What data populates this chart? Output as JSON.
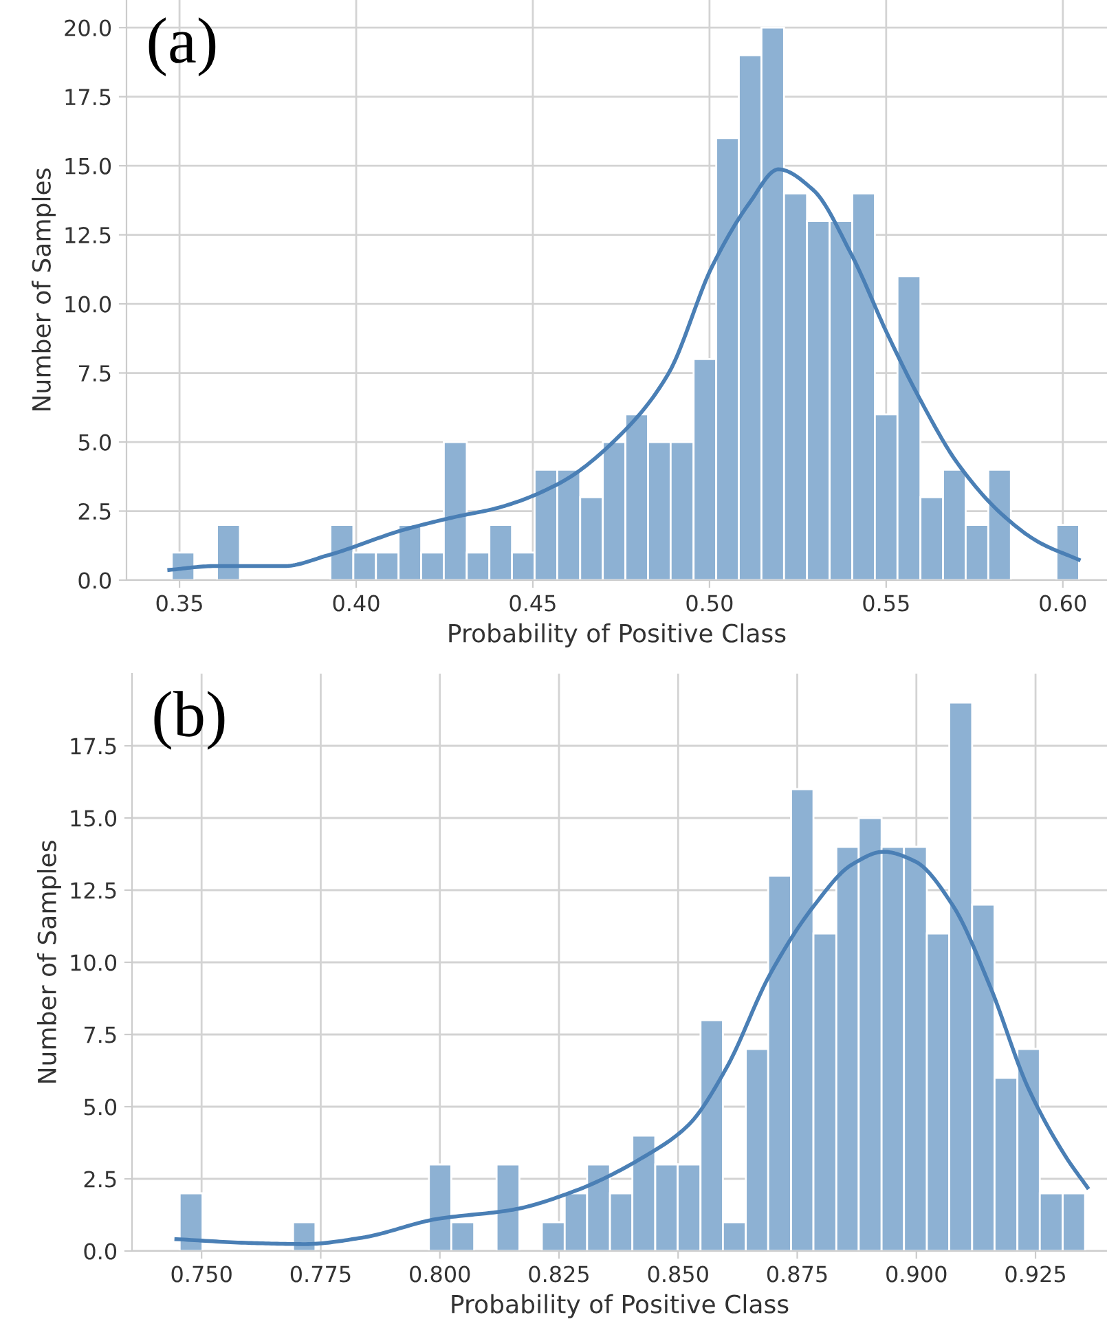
{
  "chart_data": [
    {
      "type": "histogram",
      "xlabel": "Probability of Positive Class",
      "ylabel": "Number of Samples",
      "annotations": [
        "(a)"
      ],
      "color": "#8db1d3",
      "grid": true,
      "bins": [
        0.3478,
        0.3542,
        0.3606,
        0.3671,
        0.3927,
        0.3992,
        0.4056,
        0.412,
        0.4184,
        0.4248,
        0.4313,
        0.4377,
        0.4441,
        0.4505,
        0.4569,
        0.4634,
        0.4698,
        0.4762,
        0.4826,
        0.489,
        0.4955,
        0.5019,
        0.5083,
        0.5147,
        0.5211,
        0.5276,
        0.534,
        0.5404,
        0.5468,
        0.5532,
        0.5597,
        0.5661,
        0.5725,
        0.5789,
        0.5853,
        0.5982,
        0.6046
      ],
      "values": [
        1,
        0,
        2,
        0,
        2,
        1,
        1,
        2,
        1,
        5,
        1,
        2,
        1,
        4,
        4,
        3,
        5,
        6,
        5,
        5,
        8,
        16,
        19,
        20,
        14,
        13,
        13,
        14,
        6,
        11,
        3,
        4,
        2,
        4,
        0,
        2
      ],
      "series": [
        {
          "type": "line",
          "color": "#4a7fb5",
          "x": [
            0.3471,
            0.36,
            0.3796,
            0.392,
            0.4134,
            0.4277,
            0.4402,
            0.458,
            0.4758,
            0.4883,
            0.5008,
            0.5114,
            0.5195,
            0.5293,
            0.54,
            0.5506,
            0.5596,
            0.5702,
            0.5827,
            0.5934,
            0.6045
          ],
          "values": [
            0.37,
            0.51,
            0.51,
            0.9,
            1.82,
            2.28,
            2.62,
            3.54,
            5.39,
            7.46,
            11.37,
            13.67,
            14.87,
            14.13,
            11.83,
            8.84,
            6.54,
            4.23,
            2.39,
            1.36,
            0.74
          ]
        }
      ],
      "xlim": [
        0.335,
        0.6125
      ],
      "xticks": [
        {
          "value": 0.35,
          "label": "0.35"
        },
        {
          "value": 0.4,
          "label": "0.40"
        },
        {
          "value": 0.45,
          "label": "0.45"
        },
        {
          "value": 0.5,
          "label": "0.50"
        },
        {
          "value": 0.55,
          "label": "0.55"
        },
        {
          "value": 0.6,
          "label": "0.60"
        }
      ],
      "ylim": [
        0,
        21
      ],
      "yticks": [
        {
          "value": 0,
          "label": "0.0"
        },
        2.5,
        {
          "value": 5,
          "label": "5.0"
        },
        7.5,
        {
          "value": 10,
          "label": "10.0"
        },
        12.5,
        {
          "value": 15,
          "label": "15.0"
        },
        17.5,
        {
          "value": 20,
          "label": "20.0"
        }
      ]
    },
    {
      "type": "histogram",
      "xlabel": "Probability of Positive Class",
      "ylabel": "Number of Samples",
      "annotations": [
        "(b)"
      ],
      "color": "#8db1d3",
      "grid": true,
      "bins": [
        0.7454,
        0.7502,
        0.7692,
        0.7739,
        0.7977,
        0.8024,
        0.8072,
        0.8119,
        0.8167,
        0.8214,
        0.8262,
        0.8309,
        0.8357,
        0.8404,
        0.8452,
        0.8499,
        0.8547,
        0.8594,
        0.8642,
        0.8689,
        0.8737,
        0.8784,
        0.8832,
        0.8879,
        0.8927,
        0.8974,
        0.9022,
        0.9069,
        0.9117,
        0.9164,
        0.9212,
        0.9259,
        0.9307,
        0.9354
      ],
      "values": [
        2,
        0,
        1,
        0,
        3,
        1,
        0,
        3,
        0,
        1,
        2,
        3,
        2,
        4,
        3,
        3,
        8,
        1,
        7,
        13,
        16,
        11,
        14,
        15,
        14,
        14,
        11,
        19,
        12,
        6,
        7,
        2,
        2
      ],
      "series": [
        {
          "type": "line",
          "color": "#4a7fb5",
          "x": [
            0.7447,
            0.7599,
            0.7718,
            0.7836,
            0.7994,
            0.8153,
            0.8285,
            0.843,
            0.8522,
            0.8601,
            0.8693,
            0.8786,
            0.8865,
            0.8931,
            0.8997,
            0.9076,
            0.9155,
            0.9234,
            0.9313,
            0.9359
          ],
          "values": [
            0.41,
            0.28,
            0.24,
            0.46,
            1.11,
            1.43,
            2.09,
            3.28,
            4.37,
            6.33,
            9.59,
            11.98,
            13.39,
            13.83,
            13.5,
            11.98,
            9.15,
            5.67,
            3.28,
            2.2
          ]
        }
      ],
      "xlim": [
        0.7354,
        0.94
      ],
      "xticks": [
        {
          "value": 0.75,
          "label": "0.750"
        },
        {
          "value": 0.775,
          "label": "0.775"
        },
        {
          "value": 0.8,
          "label": "0.800"
        },
        {
          "value": 0.825,
          "label": "0.825"
        },
        {
          "value": 0.85,
          "label": "0.850"
        },
        {
          "value": 0.875,
          "label": "0.875"
        },
        {
          "value": 0.9,
          "label": "0.900"
        },
        {
          "value": 0.925,
          "label": "0.925"
        }
      ],
      "ylim": [
        0,
        20
      ],
      "yticks": [
        {
          "value": 0,
          "label": "0.0"
        },
        2.5,
        {
          "value": 5,
          "label": "5.0"
        },
        7.5,
        {
          "value": 10,
          "label": "10.0"
        },
        12.5,
        {
          "value": 15,
          "label": "15.0"
        },
        17.5
      ]
    }
  ]
}
